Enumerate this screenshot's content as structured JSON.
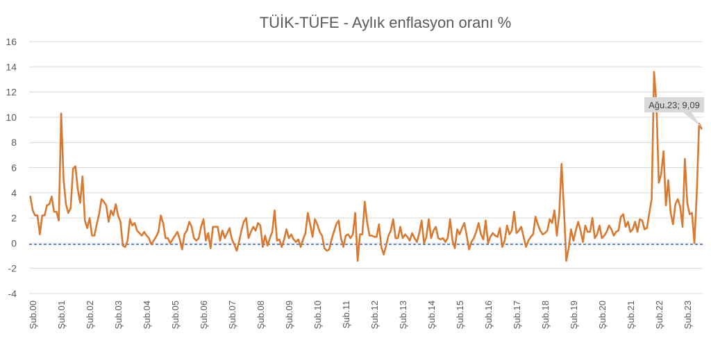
{
  "chart_data": {
    "type": "line",
    "title": "TÜİK-TÜFE - Aylık enflasyon oranı %",
    "ylim": [
      -4,
      16
    ],
    "yticks": [
      "16",
      "14",
      "12",
      "10",
      "8",
      "6",
      "4",
      "2",
      "0",
      "-2",
      "-4"
    ],
    "ytick_values": [
      16,
      14,
      12,
      10,
      8,
      6,
      4,
      2,
      0,
      -2,
      -4
    ],
    "grid": true,
    "legend": "none",
    "reference_line": {
      "value": -0.1,
      "style": "dashed",
      "color": "#4472c4"
    },
    "series_color": "#d9782f",
    "x_start": "2000-01",
    "x_end": "2023-08",
    "x_tick_labels": [
      "Şub.00",
      "Şub.01",
      "Şub.02",
      "Şub.03",
      "Şub.04",
      "Şub.05",
      "Şub.06",
      "Şub.07",
      "Şub.08",
      "Şub.09",
      "Şub.10",
      "Şub.11",
      "Şub.12",
      "Şub.13",
      "Şub.14",
      "Şub.15",
      "Şub.16",
      "Şub.17",
      "Şub.18",
      "Şub.19",
      "Şub.20",
      "Şub.21",
      "Şub.22",
      "Şub.23"
    ],
    "annotation": {
      "label": "Ağu.23; 9,09",
      "x": "2023-08",
      "y": 9.09
    },
    "series": [
      {
        "values": [
          3.7,
          2.6,
          2.2,
          2.2,
          0.7,
          2.2,
          2.2,
          3.0,
          3.1,
          3.7,
          2.5,
          2.5,
          1.8,
          10.3,
          5.1,
          3.1,
          2.4,
          2.8,
          5.9,
          6.1,
          4.3,
          3.2,
          5.3,
          1.8,
          1.2,
          2.0,
          0.6,
          0.6,
          1.5,
          2.3,
          3.5,
          3.3,
          3.0,
          1.7,
          2.6,
          2.2,
          3.1,
          2.2,
          1.7,
          -0.2,
          -0.3,
          0.2,
          1.9,
          1.4,
          1.6,
          1.0,
          0.8,
          0.6,
          0.9,
          0.6,
          0.4,
          -0.1,
          0.2,
          0.5,
          0.9,
          2.2,
          1.6,
          0.4,
          0.4,
          0.0,
          0.3,
          0.6,
          0.9,
          0.3,
          -0.5,
          0.7,
          1.0,
          1.7,
          1.3,
          0.4,
          0.2,
          0.4,
          1.3,
          1.9,
          0.2,
          0.8,
          -0.4,
          1.3,
          1.3,
          1.3,
          0.2,
          1.0,
          0.4,
          0.8,
          1.2,
          0.3,
          -0.1,
          -0.6,
          0.1,
          1.0,
          1.7,
          2.0,
          0.4,
          0.9,
          1.3,
          1.0,
          1.6,
          1.4,
          -0.3,
          0.6,
          -0.2,
          0.4,
          0.9,
          2.6,
          0.2,
          0.3,
          -0.3,
          0.3,
          1.1,
          0.4,
          0.7,
          0.3,
          0.1,
          0.3,
          -0.3,
          0.3,
          0.8,
          2.4,
          1.5,
          0.5,
          1.9,
          1.5,
          0.9,
          0.6,
          -0.4,
          -0.6,
          -0.5,
          0.3,
          0.9,
          1.5,
          1.8,
          0.4,
          -0.3,
          0.6,
          0.7,
          0.4,
          0.7,
          2.4,
          -1.4,
          0.7,
          0.7,
          3.3,
          1.7,
          0.6,
          0.6,
          0.5,
          0.5,
          1.5,
          -0.3,
          -0.9,
          -0.2,
          0.6,
          1.0,
          1.9,
          0.4,
          0.4,
          1.3,
          0.4,
          0.7,
          0.5,
          0.2,
          0.8,
          0.4,
          0.1,
          0.8,
          1.8,
          0.0,
          0.5,
          1.9,
          0.4,
          1.0,
          1.3,
          0.4,
          0.3,
          0.4,
          0.1,
          0.4,
          1.9,
          0.2,
          -0.4,
          1.1,
          0.7,
          1.2,
          1.6,
          0.6,
          -0.5,
          0.1,
          0.4,
          0.9,
          1.6,
          0.7,
          0.3,
          1.8,
          0.0,
          0.5,
          0.8,
          0.6,
          0.5,
          1.2,
          -0.3,
          0.2,
          1.4,
          0.7,
          1.0,
          2.5,
          0.8,
          1.0,
          1.3,
          0.5,
          -0.3,
          0.2,
          0.5,
          0.7,
          2.1,
          1.5,
          1.0,
          0.7,
          0.8,
          1.0,
          1.9,
          1.6,
          2.6,
          0.6,
          2.3,
          6.3,
          2.7,
          -1.4,
          -0.4,
          1.1,
          0.2,
          1.0,
          1.7,
          1.0,
          0.1,
          1.4,
          0.9,
          0.9,
          2.0,
          0.4,
          0.7,
          1.4,
          0.4,
          0.6,
          0.9,
          1.4,
          1.1,
          0.6,
          0.9,
          1.0,
          2.1,
          2.3,
          1.3,
          1.7,
          0.9,
          1.1,
          1.7,
          0.9,
          1.9,
          1.8,
          1.1,
          1.2,
          2.4,
          3.5,
          13.6,
          11.1,
          4.8,
          5.5,
          7.3,
          3.0,
          5.0,
          2.4,
          1.5,
          3.1,
          3.5,
          2.9,
          1.3,
          6.7,
          3.2,
          2.3,
          2.4,
          0.0,
          3.9,
          9.5,
          9.09
        ]
      }
    ]
  }
}
